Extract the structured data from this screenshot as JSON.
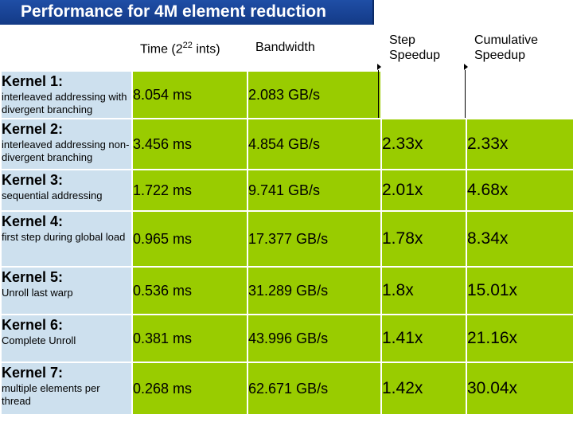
{
  "title": "Performance for 4M element reduction",
  "headers": {
    "time": "Time (2",
    "time_exp": "22",
    "time_suffix": " ints)",
    "bandwidth": "Bandwidth",
    "step_speedup": "Step Speedup",
    "cumulative_speedup": "Cumulative Speedup"
  },
  "rows": [
    {
      "name": "Kernel 1:",
      "desc": "interleaved addressing with divergent branching",
      "time": "8.054 ms",
      "bandwidth": "2.083 GB/s",
      "step": "",
      "cumulative": ""
    },
    {
      "name": "Kernel 2:",
      "desc": "interleaved addressing non-divergent branching",
      "time": "3.456 ms",
      "bandwidth": "4.854 GB/s",
      "step": "2.33x",
      "cumulative": "2.33x"
    },
    {
      "name": "Kernel 3:",
      "desc": "sequential addressing",
      "time": "1.722 ms",
      "bandwidth": "9.741 GB/s",
      "step": "2.01x",
      "cumulative": "4.68x"
    },
    {
      "name": "Kernel 4:",
      "desc": "first step during global load",
      "time": "0.965 ms",
      "bandwidth": "17.377 GB/s",
      "step": "1.78x",
      "cumulative": "8.34x"
    },
    {
      "name": "Kernel 5:",
      "desc": "Unroll last warp",
      "time": "0.536 ms",
      "bandwidth": "31.289 GB/s",
      "step": "1.8x",
      "cumulative": "15.01x"
    },
    {
      "name": "Kernel 6:",
      "desc": "Complete Unroll",
      "time": "0.381 ms",
      "bandwidth": "43.996 GB/s",
      "step": "1.41x",
      "cumulative": "21.16x"
    },
    {
      "name": "Kernel 7:",
      "desc": "multiple elements per thread",
      "time": "0.268 ms",
      "bandwidth": "62.671 GB/s",
      "step": "1.42x",
      "cumulative": "30.04x"
    }
  ],
  "colors": {
    "title_bar": "#1f4ea6",
    "kernel_cell": "#cde0ee",
    "data_cell": "#99cc00"
  }
}
